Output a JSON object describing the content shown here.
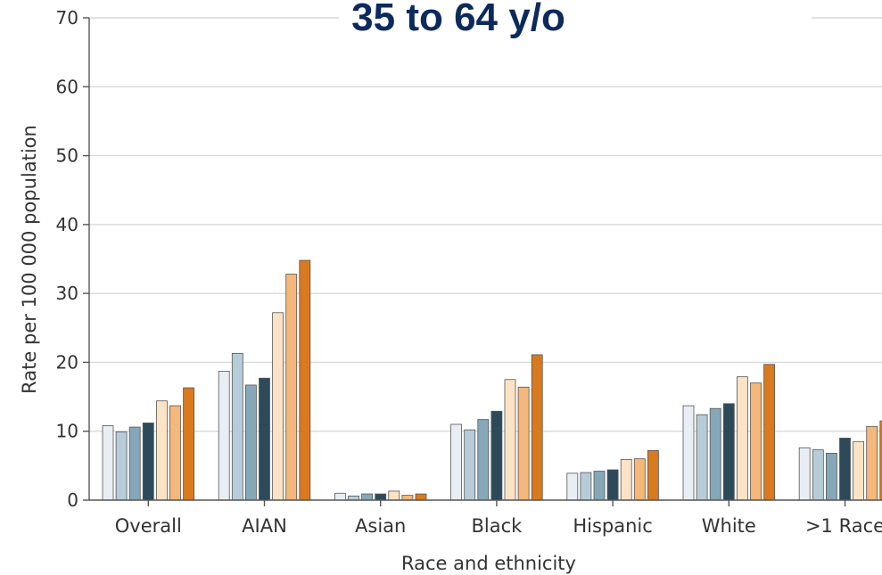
{
  "chart_data": {
    "type": "bar",
    "title": "35 to 64 y/o",
    "xlabel": "Race and ethnicity",
    "ylabel": "Rate per 100 000 population",
    "ylim": [
      0,
      70
    ],
    "yticks": [
      0,
      10,
      20,
      30,
      40,
      50,
      60,
      70
    ],
    "grid": true,
    "categories": [
      "Overall",
      "AIAN",
      "Asian",
      "Black",
      "Hispanic",
      "White",
      ">1 Race"
    ],
    "series_colors": [
      "#e8eef4",
      "#b7ccd9",
      "#86a7b8",
      "#2d4a5a",
      "#fde3c6",
      "#f5b77a",
      "#d97a1f"
    ],
    "series": [
      {
        "values": [
          10.8,
          18.7,
          1.0,
          11.0,
          3.9,
          13.7,
          7.6
        ]
      },
      {
        "values": [
          9.9,
          21.3,
          0.6,
          10.2,
          4.0,
          12.4,
          7.3
        ]
      },
      {
        "values": [
          10.6,
          16.7,
          0.9,
          11.7,
          4.2,
          13.3,
          6.8
        ]
      },
      {
        "values": [
          11.2,
          17.7,
          0.9,
          12.9,
          4.4,
          14.0,
          9.0
        ]
      },
      {
        "values": [
          14.4,
          27.2,
          1.3,
          17.5,
          5.9,
          17.9,
          8.5
        ]
      },
      {
        "values": [
          13.7,
          32.8,
          0.7,
          16.4,
          6.0,
          17.0,
          10.7
        ]
      },
      {
        "values": [
          16.3,
          34.8,
          0.9,
          21.1,
          7.2,
          19.7,
          11.5
        ]
      }
    ]
  }
}
